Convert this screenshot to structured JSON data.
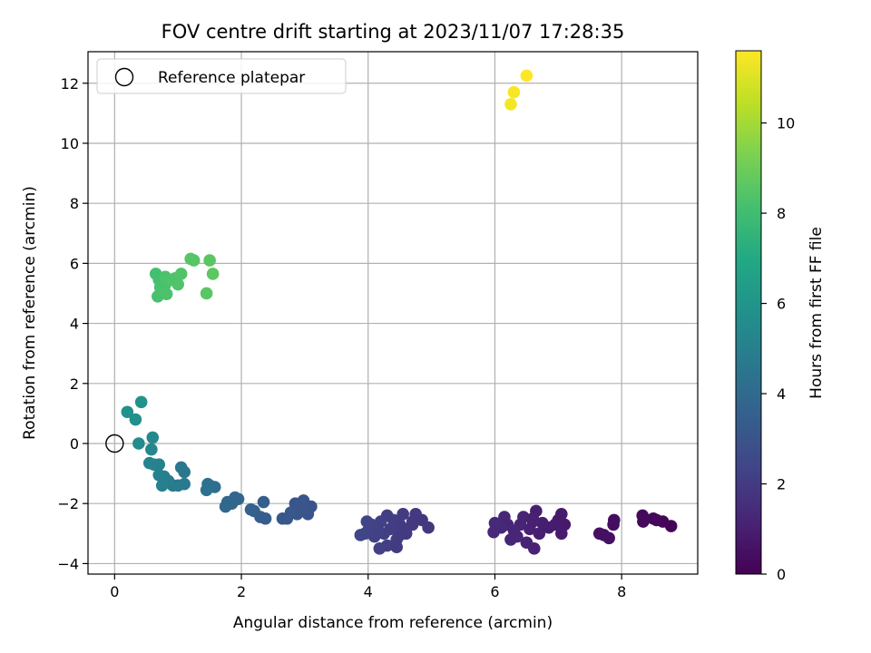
{
  "chart_data": {
    "type": "scatter",
    "title": "FOV centre drift starting at 2023/11/07 17:28:35",
    "xlabel": "Angular distance from reference (arcmin)",
    "ylabel": "Rotation from reference (arcmin)",
    "xlim": [
      -0.42,
      9.2
    ],
    "ylim": [
      -4.35,
      13.05
    ],
    "xticks": [
      0,
      2,
      4,
      6,
      8
    ],
    "yticks": [
      -4,
      -2,
      0,
      2,
      4,
      6,
      8,
      10,
      12
    ],
    "grid": true,
    "colormap": "viridis",
    "colorbar": {
      "label": "Hours from first FF file",
      "range": [
        0,
        11.6
      ],
      "ticks": [
        0,
        2,
        4,
        6,
        8,
        10
      ]
    },
    "legend": {
      "position": "top-left",
      "entries": [
        "Reference platepar"
      ]
    },
    "reference_point": {
      "x": 0,
      "y": 0
    },
    "series": [
      {
        "points": [
          {
            "x": 8.78,
            "y": -2.75,
            "c": 0.1
          },
          {
            "x": 8.65,
            "y": -2.6,
            "c": 0.15
          },
          {
            "x": 8.5,
            "y": -2.5,
            "c": 0.2
          },
          {
            "x": 8.55,
            "y": -2.55,
            "c": 0.2
          },
          {
            "x": 8.33,
            "y": -2.4,
            "c": 0.25
          },
          {
            "x": 8.34,
            "y": -2.6,
            "c": 0.25
          },
          {
            "x": 7.88,
            "y": -2.55,
            "c": 0.4
          },
          {
            "x": 7.87,
            "y": -2.7,
            "c": 0.4
          },
          {
            "x": 7.8,
            "y": -3.15,
            "c": 0.45
          },
          {
            "x": 7.72,
            "y": -3.05,
            "c": 0.5
          },
          {
            "x": 7.65,
            "y": -3.0,
            "c": 0.5
          },
          {
            "x": 7.1,
            "y": -2.7,
            "c": 0.8
          },
          {
            "x": 7.05,
            "y": -2.35,
            "c": 0.85
          },
          {
            "x": 7.0,
            "y": -2.55,
            "c": 0.85
          },
          {
            "x": 7.05,
            "y": -3.0,
            "c": 0.9
          },
          {
            "x": 6.95,
            "y": -2.7,
            "c": 0.9
          },
          {
            "x": 6.85,
            "y": -2.8,
            "c": 0.95
          },
          {
            "x": 6.75,
            "y": -2.65,
            "c": 1.0
          },
          {
            "x": 6.65,
            "y": -2.25,
            "c": 1.0
          },
          {
            "x": 6.6,
            "y": -2.5,
            "c": 1.05
          },
          {
            "x": 6.55,
            "y": -2.85,
            "c": 1.05
          },
          {
            "x": 6.62,
            "y": -3.5,
            "c": 1.1
          },
          {
            "x": 6.5,
            "y": -3.3,
            "c": 1.1
          },
          {
            "x": 6.45,
            "y": -2.45,
            "c": 1.15
          },
          {
            "x": 6.4,
            "y": -2.7,
            "c": 1.15
          },
          {
            "x": 6.35,
            "y": -3.1,
            "c": 1.2
          },
          {
            "x": 6.3,
            "y": -2.9,
            "c": 1.2
          },
          {
            "x": 6.25,
            "y": -3.2,
            "c": 1.25
          },
          {
            "x": 6.2,
            "y": -2.7,
            "c": 1.25
          },
          {
            "x": 6.15,
            "y": -2.45,
            "c": 1.3
          },
          {
            "x": 6.1,
            "y": -2.8,
            "c": 1.3
          },
          {
            "x": 6.0,
            "y": -2.65,
            "c": 1.35
          },
          {
            "x": 5.98,
            "y": -2.95,
            "c": 1.35
          },
          {
            "x": 6.7,
            "y": -3.0,
            "c": 1.0
          },
          {
            "x": 6.6,
            "y": -2.6,
            "c": 1.05
          },
          {
            "x": 4.95,
            "y": -2.8,
            "c": 1.8
          },
          {
            "x": 4.85,
            "y": -2.55,
            "c": 1.85
          },
          {
            "x": 4.75,
            "y": -2.35,
            "c": 1.9
          },
          {
            "x": 4.7,
            "y": -2.7,
            "c": 1.9
          },
          {
            "x": 4.6,
            "y": -3.0,
            "c": 1.95
          },
          {
            "x": 4.55,
            "y": -2.35,
            "c": 2.0
          },
          {
            "x": 4.5,
            "y": -2.7,
            "c": 2.0
          },
          {
            "x": 4.45,
            "y": -3.2,
            "c": 2.05
          },
          {
            "x": 4.4,
            "y": -2.55,
            "c": 2.05
          },
          {
            "x": 4.35,
            "y": -2.85,
            "c": 2.1
          },
          {
            "x": 4.3,
            "y": -2.4,
            "c": 2.1
          },
          {
            "x": 4.3,
            "y": -3.4,
            "c": 2.15
          },
          {
            "x": 4.25,
            "y": -3.0,
            "c": 2.15
          },
          {
            "x": 4.2,
            "y": -2.6,
            "c": 2.2
          },
          {
            "x": 4.18,
            "y": -3.5,
            "c": 2.2
          },
          {
            "x": 4.15,
            "y": -2.85,
            "c": 2.25
          },
          {
            "x": 4.1,
            "y": -3.1,
            "c": 2.25
          },
          {
            "x": 4.05,
            "y": -2.7,
            "c": 2.3
          },
          {
            "x": 4.0,
            "y": -2.9,
            "c": 2.3
          },
          {
            "x": 3.98,
            "y": -2.6,
            "c": 2.35
          },
          {
            "x": 3.95,
            "y": -3.0,
            "c": 2.35
          },
          {
            "x": 3.88,
            "y": -3.05,
            "c": 2.4
          },
          {
            "x": 4.45,
            "y": -3.45,
            "c": 2.0
          },
          {
            "x": 4.6,
            "y": -2.85,
            "c": 1.95
          },
          {
            "x": 4.5,
            "y": -3.05,
            "c": 2.0
          },
          {
            "x": 4.7,
            "y": -2.6,
            "c": 1.9
          },
          {
            "x": 3.1,
            "y": -2.1,
            "c": 3.0
          },
          {
            "x": 3.05,
            "y": -2.35,
            "c": 3.0
          },
          {
            "x": 2.98,
            "y": -1.9,
            "c": 3.05
          },
          {
            "x": 2.95,
            "y": -2.2,
            "c": 3.05
          },
          {
            "x": 2.88,
            "y": -2.35,
            "c": 3.1
          },
          {
            "x": 2.85,
            "y": -2.0,
            "c": 3.1
          },
          {
            "x": 2.78,
            "y": -2.3,
            "c": 3.15
          },
          {
            "x": 2.72,
            "y": -2.5,
            "c": 3.2
          },
          {
            "x": 2.65,
            "y": -2.5,
            "c": 3.2
          },
          {
            "x": 2.38,
            "y": -2.5,
            "c": 3.4
          },
          {
            "x": 2.35,
            "y": -1.95,
            "c": 3.45
          },
          {
            "x": 2.3,
            "y": -2.45,
            "c": 3.45
          },
          {
            "x": 2.2,
            "y": -2.25,
            "c": 3.5
          },
          {
            "x": 2.15,
            "y": -2.2,
            "c": 3.55
          },
          {
            "x": 1.95,
            "y": -1.85,
            "c": 3.75
          },
          {
            "x": 1.9,
            "y": -1.8,
            "c": 3.8
          },
          {
            "x": 1.85,
            "y": -2.0,
            "c": 3.85
          },
          {
            "x": 1.78,
            "y": -1.95,
            "c": 3.9
          },
          {
            "x": 1.75,
            "y": -2.1,
            "c": 3.9
          },
          {
            "x": 1.58,
            "y": -1.45,
            "c": 4.2
          },
          {
            "x": 1.5,
            "y": -1.4,
            "c": 4.25
          },
          {
            "x": 1.45,
            "y": -1.55,
            "c": 4.3
          },
          {
            "x": 1.47,
            "y": -1.35,
            "c": 4.3
          },
          {
            "x": 1.1,
            "y": -0.95,
            "c": 4.6
          },
          {
            "x": 1.05,
            "y": -0.8,
            "c": 4.65
          },
          {
            "x": 1.1,
            "y": -1.35,
            "c": 4.7
          },
          {
            "x": 1.0,
            "y": -1.4,
            "c": 4.75
          },
          {
            "x": 0.92,
            "y": -1.4,
            "c": 4.8
          },
          {
            "x": 0.85,
            "y": -1.25,
            "c": 4.85
          },
          {
            "x": 0.78,
            "y": -1.1,
            "c": 4.9
          },
          {
            "x": 0.75,
            "y": -1.4,
            "c": 4.95
          },
          {
            "x": 0.7,
            "y": -1.05,
            "c": 5.0
          },
          {
            "x": 0.7,
            "y": -0.7,
            "c": 5.05
          },
          {
            "x": 0.62,
            "y": -0.7,
            "c": 5.1
          },
          {
            "x": 0.55,
            "y": -0.65,
            "c": 5.15
          },
          {
            "x": 0.58,
            "y": -0.2,
            "c": 5.3
          },
          {
            "x": 0.6,
            "y": 0.2,
            "c": 5.4
          },
          {
            "x": 0.38,
            "y": 0.0,
            "c": 5.5
          },
          {
            "x": 0.33,
            "y": 0.8,
            "c": 5.7
          },
          {
            "x": 0.2,
            "y": 1.05,
            "c": 5.8
          },
          {
            "x": 0.42,
            "y": 1.38,
            "c": 5.9
          },
          {
            "x": 0.65,
            "y": 5.65,
            "c": 8.1
          },
          {
            "x": 0.7,
            "y": 5.45,
            "c": 8.15
          },
          {
            "x": 0.68,
            "y": 4.9,
            "c": 8.2
          },
          {
            "x": 0.72,
            "y": 5.2,
            "c": 8.2
          },
          {
            "x": 0.75,
            "y": 5.0,
            "c": 8.25
          },
          {
            "x": 0.8,
            "y": 5.3,
            "c": 8.25
          },
          {
            "x": 0.8,
            "y": 5.55,
            "c": 8.3
          },
          {
            "x": 0.82,
            "y": 4.98,
            "c": 8.3
          },
          {
            "x": 0.88,
            "y": 5.45,
            "c": 8.35
          },
          {
            "x": 0.95,
            "y": 5.5,
            "c": 8.35
          },
          {
            "x": 1.0,
            "y": 5.3,
            "c": 8.4
          },
          {
            "x": 1.05,
            "y": 5.65,
            "c": 8.4
          },
          {
            "x": 1.2,
            "y": 6.15,
            "c": 8.5
          },
          {
            "x": 1.25,
            "y": 6.1,
            "c": 8.5
          },
          {
            "x": 1.45,
            "y": 5.0,
            "c": 8.6
          },
          {
            "x": 1.5,
            "y": 6.1,
            "c": 8.6
          },
          {
            "x": 1.55,
            "y": 5.65,
            "c": 8.65
          },
          {
            "x": 6.25,
            "y": 11.3,
            "c": 11.4
          },
          {
            "x": 6.3,
            "y": 11.7,
            "c": 11.5
          },
          {
            "x": 6.5,
            "y": 12.25,
            "c": 11.6
          }
        ]
      }
    ]
  }
}
